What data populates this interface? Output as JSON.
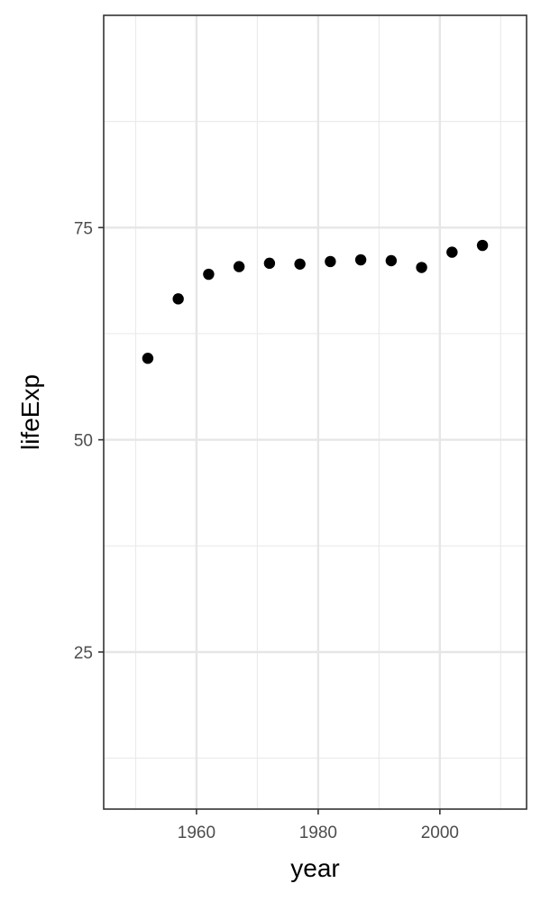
{
  "chart_data": {
    "type": "scatter",
    "title": "",
    "xlabel": "year",
    "ylabel": "lifeExp",
    "xlim": [
      1944.75,
      2014.25
    ],
    "ylim": [
      6.5,
      100
    ],
    "x_ticks": [
      1960,
      1980,
      2000
    ],
    "x_minor": [
      1950,
      1970,
      1990,
      2010
    ],
    "y_ticks": [
      25,
      50,
      75
    ],
    "y_minor": [
      12.5,
      37.5,
      62.5,
      87.5
    ],
    "grid": true,
    "legend": "none",
    "point_color": "#000000",
    "x": [
      1952,
      1957,
      1962,
      1967,
      1972,
      1977,
      1982,
      1987,
      1992,
      1997,
      2002,
      2007
    ],
    "y": [
      59.6,
      66.6,
      69.5,
      70.4,
      70.8,
      70.7,
      71.0,
      71.2,
      71.1,
      70.3,
      72.1,
      72.9
    ]
  }
}
